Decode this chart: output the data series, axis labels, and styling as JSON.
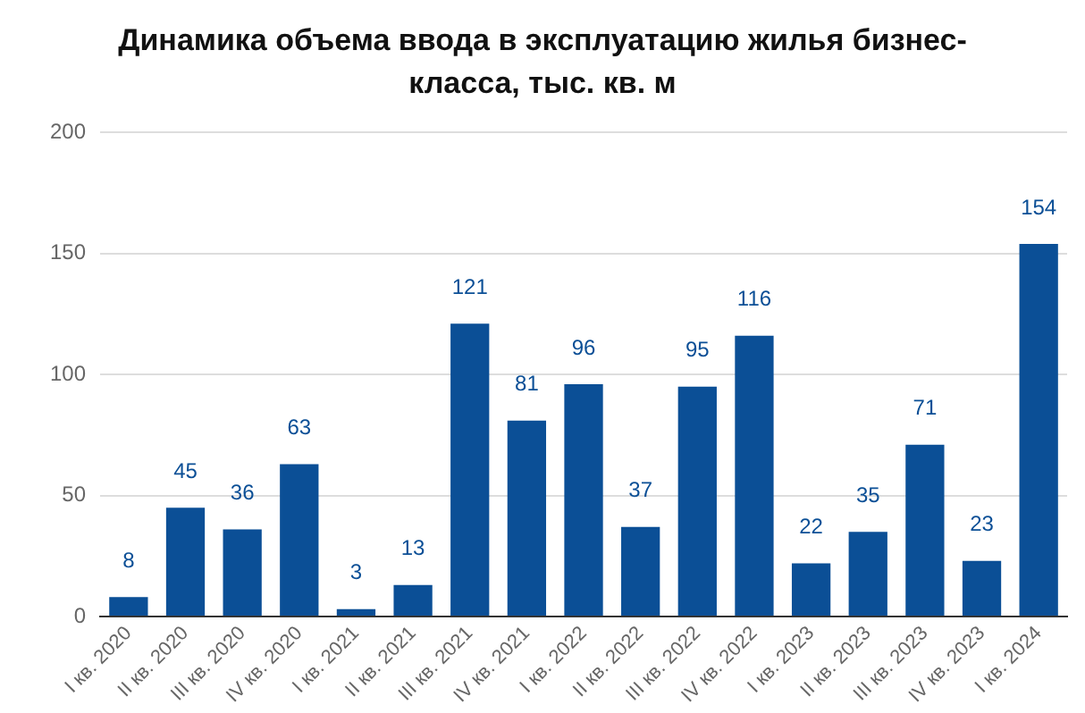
{
  "chart_data": {
    "type": "bar",
    "title": "Динамика объема ввода в эксплуатацию жилья бизнес-класса, тыс. кв. м",
    "categories": [
      "I кв. 2020",
      "II кв. 2020",
      "III кв. 2020",
      "IV кв. 2020",
      "I кв. 2021",
      "II кв. 2021",
      "III кв. 2021",
      "IV кв. 2021",
      "I кв. 2022",
      "II кв. 2022",
      "III кв. 2022",
      "IV кв. 2022",
      "I кв. 2023",
      "II кв. 2023",
      "III кв. 2023",
      "IV кв. 2023",
      "I кв. 2024"
    ],
    "values": [
      8,
      45,
      36,
      63,
      3,
      13,
      121,
      81,
      96,
      37,
      95,
      116,
      22,
      35,
      71,
      23,
      154
    ],
    "color": "#0b4f96",
    "ylim": [
      0,
      200
    ],
    "yticks": [
      0,
      50,
      100,
      150,
      200
    ],
    "grid": "y",
    "data_labels": true
  }
}
